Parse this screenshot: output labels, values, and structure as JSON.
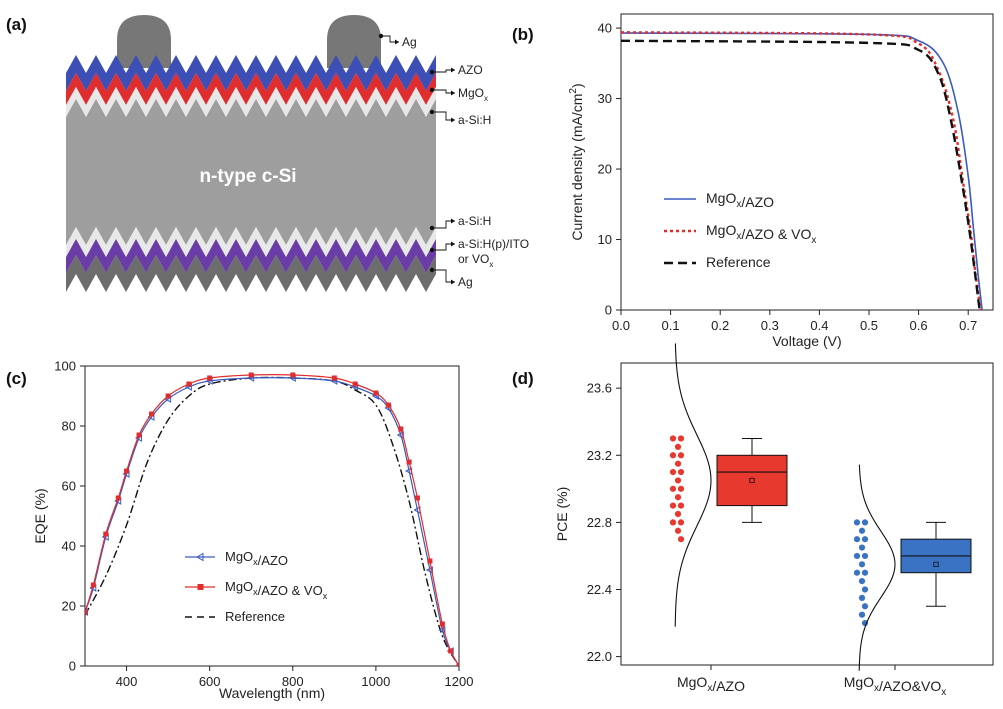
{
  "panel_a": {
    "tag": "(a)",
    "center_label": "n-type c-Si",
    "layers": [
      {
        "name": "Ag"
      },
      {
        "name": "AZO"
      },
      {
        "name": "MgO",
        "sub": "x"
      },
      {
        "name": "a-Si:H"
      },
      {
        "name": "a-Si:H"
      },
      {
        "name": "a-Si:H(p)/ITO"
      },
      {
        "name": "or VO",
        "sub": "x"
      },
      {
        "name": "Ag"
      }
    ],
    "colors": {
      "silicon": "#9e9e9e",
      "azo": "#3d4fb5",
      "mgo": "#e02d2d",
      "asih": "#e8e8e8",
      "vox": "#6a3da6",
      "ag": "#6d6d6d",
      "finger": "#777777"
    }
  },
  "chart_data": [
    {
      "id": "b",
      "tag": "(b)",
      "type": "line",
      "xlabel": "Voltage (V)",
      "ylabel": "Current density (mA/cm",
      "ylabel_sup": "2",
      "ylabel_tail": ")",
      "xlim": [
        0,
        0.75
      ],
      "ylim": [
        0,
        42
      ],
      "xticks": [
        "0.0",
        "0.1",
        "0.2",
        "0.3",
        "0.4",
        "0.5",
        "0.6",
        "0.7"
      ],
      "yticks": [
        "0",
        "10",
        "20",
        "30",
        "40"
      ],
      "legend": [
        {
          "label": "MgO",
          "sub": "x",
          "tail": "/AZO",
          "color": "#3a5bbf",
          "dash": "solid"
        },
        {
          "label": "MgO",
          "sub": "x",
          "tail": "/AZO & VO",
          "sub2": "x",
          "color": "#e02d2d",
          "dash": "dot"
        },
        {
          "label": "Reference",
          "color": "#111111",
          "dash": "dash"
        }
      ],
      "series": [
        {
          "name": "MgOx/AZO",
          "x": [
            0,
            0.5,
            0.6,
            0.65,
            0.68,
            0.7,
            0.71,
            0.72,
            0.728
          ],
          "y": [
            39.3,
            39.1,
            38.2,
            35.0,
            28.0,
            19.0,
            12.0,
            5.0,
            0
          ]
        },
        {
          "name": "MgOx/AZO & VOx",
          "x": [
            0,
            0.5,
            0.6,
            0.64,
            0.67,
            0.69,
            0.705,
            0.715,
            0.725
          ],
          "y": [
            39.4,
            39.1,
            37.8,
            34.0,
            27.0,
            18.0,
            11.0,
            5.0,
            0
          ]
        },
        {
          "name": "Reference",
          "x": [
            0,
            0.5,
            0.6,
            0.64,
            0.665,
            0.69,
            0.705,
            0.715,
            0.723
          ],
          "y": [
            38.2,
            37.9,
            36.9,
            33.5,
            27.0,
            17.0,
            10.0,
            4.5,
            0
          ]
        }
      ]
    },
    {
      "id": "c",
      "tag": "(c)",
      "type": "line",
      "xlabel": "Wavelength (nm)",
      "ylabel": "EQE (%)",
      "xlim": [
        300,
        1200
      ],
      "ylim": [
        0,
        100
      ],
      "xticks": [
        "400",
        "600",
        "800",
        "1000",
        "1200"
      ],
      "yticks": [
        "0",
        "20",
        "40",
        "60",
        "80",
        "100"
      ],
      "legend": [
        {
          "label": "MgO",
          "sub": "x",
          "tail": "/AZO",
          "color": "#3a5bbf",
          "marker": "triangle"
        },
        {
          "label": "MgO",
          "sub": "x",
          "tail": "/AZO & VO",
          "sub2": "x",
          "color": "#e02d2d",
          "marker": "square"
        },
        {
          "label": "Reference",
          "color": "#111111",
          "dash": "dash"
        }
      ],
      "series": [
        {
          "name": "MgOx/AZO",
          "x": [
            300,
            320,
            350,
            380,
            400,
            430,
            460,
            500,
            550,
            600,
            700,
            800,
            900,
            950,
            1000,
            1030,
            1060,
            1080,
            1100,
            1130,
            1160,
            1180,
            1200
          ],
          "y": [
            18,
            26,
            43,
            55,
            64,
            76,
            83,
            89,
            93,
            95,
            96,
            96,
            95,
            93,
            90,
            86,
            77,
            65,
            52,
            32,
            12,
            5,
            0
          ]
        },
        {
          "name": "MgOx/AZO & VOx",
          "x": [
            300,
            320,
            350,
            380,
            400,
            430,
            460,
            500,
            550,
            600,
            700,
            800,
            900,
            950,
            1000,
            1030,
            1060,
            1080,
            1100,
            1130,
            1160,
            1180,
            1200
          ],
          "y": [
            18,
            27,
            44,
            56,
            65,
            77,
            84,
            90,
            94,
            96,
            97,
            97,
            96,
            94,
            91,
            87,
            79,
            68,
            56,
            35,
            14,
            5,
            0
          ]
        },
        {
          "name": "Reference",
          "x": [
            300,
            350,
            400,
            450,
            500,
            550,
            600,
            700,
            800,
            900,
            950,
            1000,
            1040,
            1080,
            1120,
            1160,
            1200
          ],
          "y": [
            17,
            30,
            47,
            68,
            82,
            90,
            94,
            96,
            96,
            95,
            92,
            87,
            74,
            55,
            30,
            10,
            0
          ]
        }
      ]
    },
    {
      "id": "d",
      "tag": "(d)",
      "type": "box",
      "ylabel": "PCE (%)",
      "ylim": [
        21.95,
        23.75
      ],
      "yticks": [
        "22.0",
        "22.4",
        "22.8",
        "23.2",
        "23.6"
      ],
      "categories": [
        {
          "label": "MgO",
          "sub": "x",
          "tail": "/AZO"
        },
        {
          "label": "MgO",
          "sub": "x",
          "tail": "/AZO&VO",
          "sub2": "x"
        }
      ],
      "groups": [
        {
          "name": "MgOx/AZO",
          "color": "#e8392f",
          "min": 22.8,
          "q1": 22.9,
          "median": 23.1,
          "q3": 23.2,
          "max": 23.3,
          "mean": 23.05,
          "points": [
            22.7,
            22.75,
            22.8,
            22.8,
            22.85,
            22.9,
            22.9,
            22.95,
            23.0,
            23.0,
            23.05,
            23.1,
            23.1,
            23.15,
            23.2,
            23.2,
            23.25,
            23.3,
            23.3
          ]
        },
        {
          "name": "MgOx/AZO&VOx",
          "color": "#3a72c4",
          "min": 22.3,
          "q1": 22.5,
          "median": 22.6,
          "q3": 22.7,
          "max": 22.8,
          "mean": 22.55,
          "points": [
            22.2,
            22.25,
            22.3,
            22.35,
            22.4,
            22.45,
            22.5,
            22.5,
            22.55,
            22.6,
            22.6,
            22.65,
            22.7,
            22.7,
            22.75,
            22.8,
            22.8
          ]
        }
      ]
    }
  ]
}
